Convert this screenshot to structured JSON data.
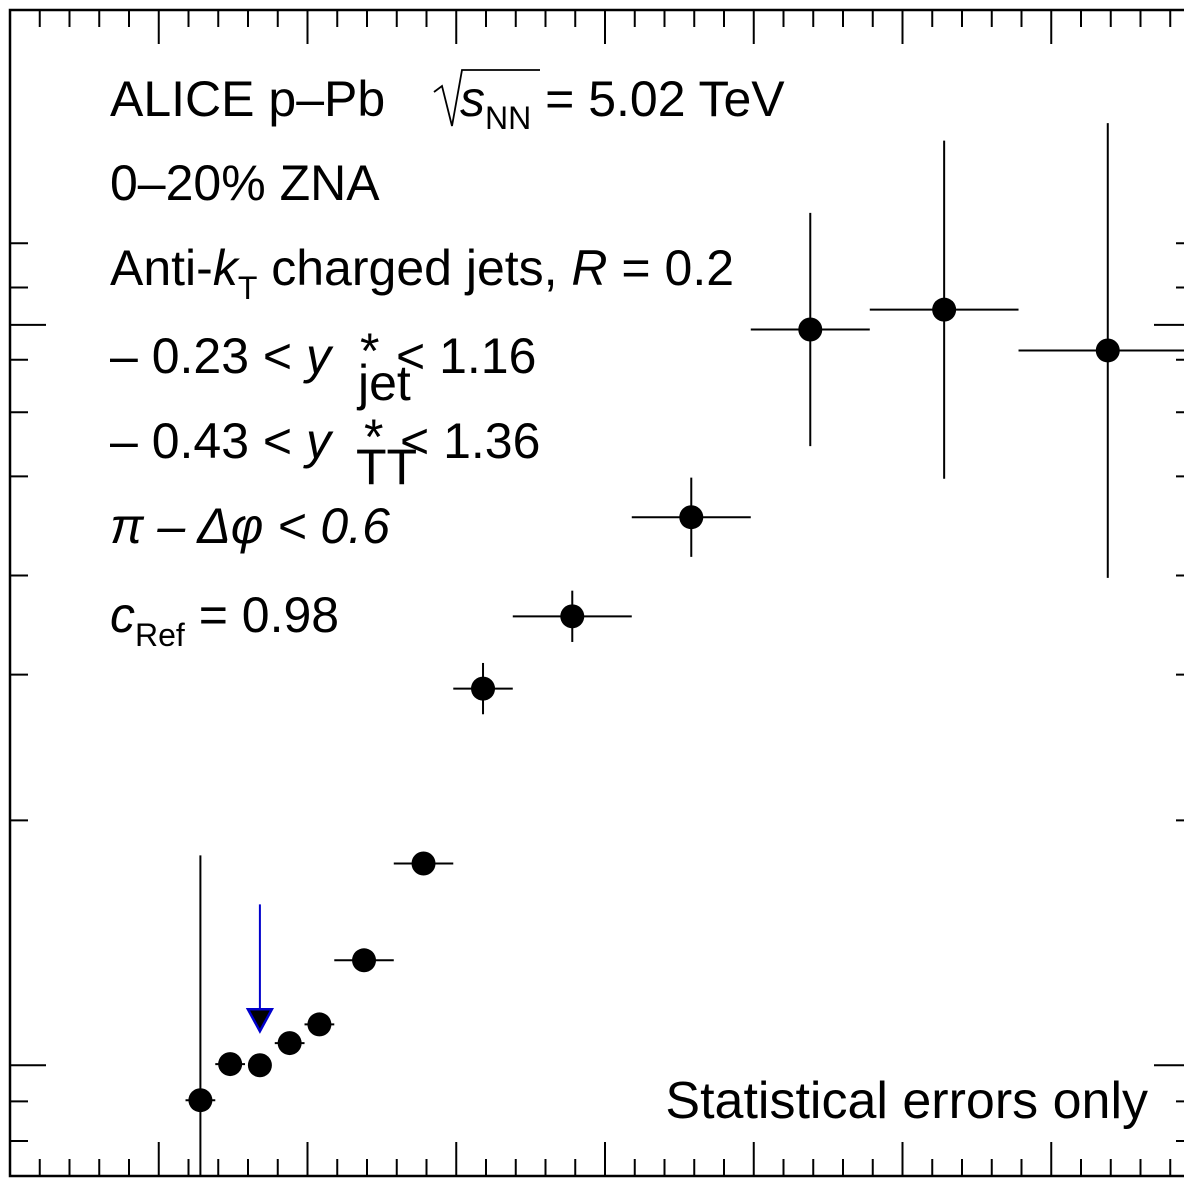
{
  "chart_data": {
    "type": "scatter",
    "title": "",
    "xlabel": "",
    "ylabel": "",
    "grid": false,
    "legend": "none",
    "labels": {
      "collab": "ALICE p–Pb ",
      "sqrt_var": "s",
      "sqrt_sub": "NN",
      "energy": " = 5.02 TeV",
      "centrality": "0–20% ZNA",
      "jet_a": "Anti-",
      "jet_k": "k",
      "jet_sub": "T",
      "jet_b": " charged jets, ",
      "jet_r": "R",
      "jet_c": " = 0.2",
      "yjet_a": "– 0.23 < ",
      "yjet_y": "y",
      "yjet_sup": "*",
      "yjet_sub": "jet",
      "yjet_b": "< 1.16",
      "ytt_a": "– 0.43 < ",
      "ytt_y": "y",
      "ytt_sup": "*",
      "ytt_sub": "TT",
      "ytt_b": "< 1.36",
      "dphi": "π – Δφ < 0.6",
      "cref_c": "c",
      "cref_sub": "Ref",
      "cref_b": " = 0.98",
      "stat": "Statistical errors only"
    },
    "xlim": [
      0,
      40
    ],
    "ylim": [
      0,
      1
    ],
    "points": [
      {
        "x": 6.4,
        "xerr": 0.5,
        "y": 0.065,
        "yerr": 0.21
      },
      {
        "x": 7.4,
        "xerr": 0.5,
        "y": 0.096,
        "yerr": 0.005
      },
      {
        "x": 9.4,
        "xerr": 0.5,
        "y": 0.114,
        "yerr": 0.005
      },
      {
        "x": 10.4,
        "xerr": 0.5,
        "y": 0.13,
        "yerr": 0.006
      },
      {
        "x": 11.9,
        "xerr": 1.0,
        "y": 0.185,
        "yerr": 0.007
      },
      {
        "x": 13.9,
        "xerr": 1.0,
        "y": 0.268,
        "yerr": 0.009
      },
      {
        "x": 15.9,
        "xerr": 1.0,
        "y": 0.418,
        "yerr": 0.022
      },
      {
        "x": 18.9,
        "xerr": 2.0,
        "y": 0.48,
        "yerr": 0.022
      },
      {
        "x": 22.9,
        "xerr": 2.0,
        "y": 0.565,
        "yerr": 0.034
      },
      {
        "x": 26.9,
        "xerr": 2.0,
        "y": 0.726,
        "yerr": 0.1
      },
      {
        "x": 31.4,
        "xerr": 2.5,
        "y": 0.743,
        "yerr": 0.145
      },
      {
        "x": 36.9,
        "xerr": 3.0,
        "y": 0.708,
        "yerr": 0.195
      }
    ],
    "upper_limits": [
      {
        "x": 8.4,
        "y": 0.095,
        "arrow_top": 0.233,
        "color": "#0000cc"
      }
    ],
    "marker_color": "#000000"
  }
}
